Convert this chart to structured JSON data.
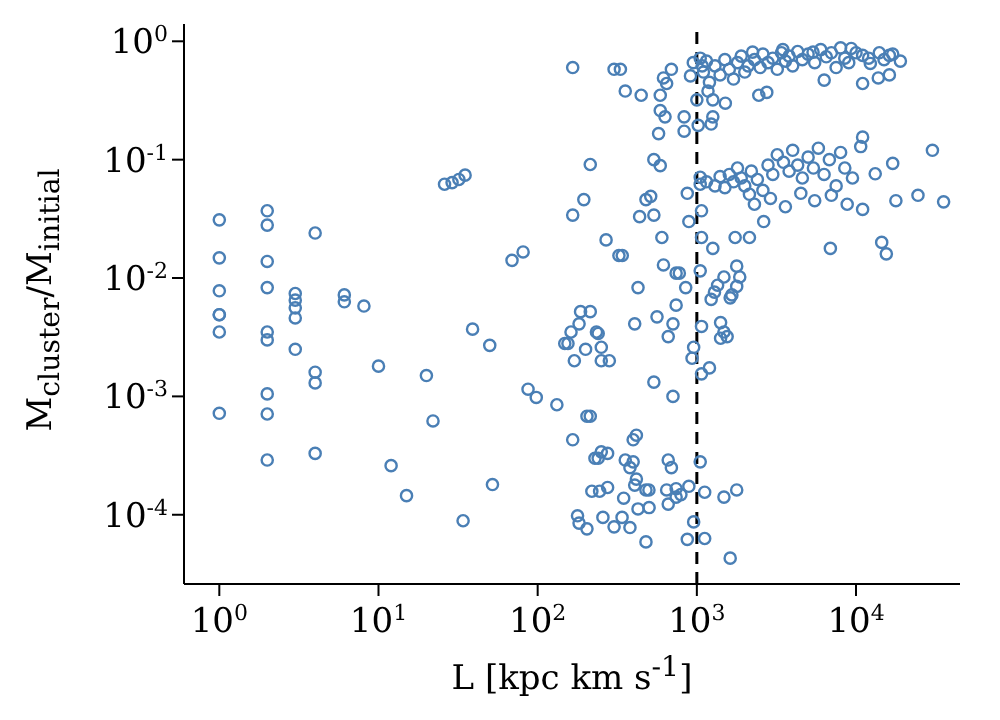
{
  "chart_data": {
    "type": "scatter",
    "xlabel": "L [kpc km s$^{-1}$]",
    "ylabel": "M$_{cluster}$/M$_{initial}$",
    "log": "xy",
    "marker": "circle",
    "color": "#4a7fb5",
    "xlim": [
      0.6,
      45000
    ],
    "ylim": [
      2.6e-05,
      1.4
    ],
    "xticks": [
      {
        "value": 1,
        "label": "10$^{0}$"
      },
      {
        "value": 10,
        "label": "10$^{1}$"
      },
      {
        "value": 100,
        "label": "10$^{2}$"
      },
      {
        "value": 1000,
        "label": "10$^{3}$"
      },
      {
        "value": 10000,
        "label": "10$^{4}$"
      }
    ],
    "yticks": [
      {
        "value": 0.0001,
        "label": "10$^{-4}$"
      },
      {
        "value": 0.001,
        "label": "10$^{-3}$"
      },
      {
        "value": 0.01,
        "label": "10$^{-2}$"
      },
      {
        "value": 0.1,
        "label": "10$^{-1}$"
      },
      {
        "value": 1,
        "label": "10$^{0}$"
      }
    ],
    "ref_lines": [
      {
        "axis": "x",
        "value": 1000,
        "color": "#000000",
        "line_style": "dashed"
      }
    ],
    "x": [
      1,
      1,
      1,
      1,
      1,
      1,
      1,
      2,
      2,
      2,
      2,
      2,
      2,
      2,
      2,
      2,
      3,
      3,
      3,
      3,
      3,
      4,
      4,
      4,
      4,
      6.1,
      6.1,
      8.1,
      10,
      12,
      15,
      20,
      22,
      26,
      29,
      32,
      35,
      34,
      39,
      50,
      52,
      69,
      81,
      87,
      98,
      132,
      148,
      166,
      302,
      331,
      355,
      447,
      617,
      692,
      646,
      589,
      589,
      631,
      575,
      832,
      832,
      912,
      1000,
      1020,
      1175,
      1260,
      1260,
      1230,
      1510,
      2450,
      2750,
      6310,
      11000,
      13800,
      16200,
      2240,
      3470,
      5370,
      9330,
      16200,
      19000,
      12300,
      1100,
      1150,
      1200,
      1300,
      1400,
      1500,
      1600,
      1700,
      1800,
      1900,
      2000,
      2100,
      2300,
      2500,
      2600,
      2800,
      3000,
      3200,
      3400,
      3600,
      3800,
      4000,
      4300,
      4600,
      5000,
      5500,
      6000,
      6500,
      7000,
      7500,
      8000,
      8500,
      9000,
      10000,
      11000,
      12000,
      14000,
      15000,
      17000,
      1050,
      1080,
      950,
      214,
      195,
      166,
      269,
      324,
      340,
      427,
      186,
      214,
      537,
      589,
      479,
      513,
      437,
      537,
      603,
      617,
      741,
      776,
      851,
      741,
      871,
      891,
      1050,
      1050,
      1070,
      1070,
      1050,
      1260,
      1290,
      1230,
      1480,
      1780,
      1860,
      1740,
      2140,
      1660,
      30200,
      35500,
      24500,
      17800,
      17000,
      14500,
      15500,
      6900,
      11000,
      10700,
      13200,
      11000,
      2630,
      2140,
      1150,
      1300,
      1400,
      1500,
      1600,
      1700,
      1800,
      1900,
      2000,
      2200,
      2400,
      2600,
      2800,
      3000,
      3200,
      3500,
      3800,
      4000,
      4300,
      4600,
      5000,
      5400,
      5800,
      6300,
      6800,
      7500,
      8000,
      8500,
      9500,
      2300,
      2900,
      3600,
      4500,
      5500,
      7000,
      8800,
      182,
      162,
      155,
      170,
      200,
      234,
      240,
      251,
      251,
      282,
      407,
      562,
      708,
      661,
      955,
      933,
      1070,
      1070,
      1200,
      1350,
      1620,
      1780,
      1410,
      1480,
      1410,
      1550,
      537,
      708,
      204,
      214,
      166,
      398,
      417,
      229,
      251,
      275,
      240,
      355,
      398,
      380,
      661,
      692,
      1050,
      417,
      407,
      479,
      500,
      219,
      245,
      275,
      347,
      646,
      741,
      741,
      794,
      891,
      661,
      1120,
      1480,
      1780,
      178,
      182,
      204,
      257,
      302,
      339,
      380,
      427,
      501,
      479,
      955,
      871,
      1120,
      1620
    ],
    "values": [
      0.031,
      0.0148,
      0.0078,
      0.0049,
      0.0049,
      0.0035,
      0.00072,
      0.037,
      0.028,
      0.0138,
      0.0083,
      0.0035,
      0.003,
      0.00105,
      0.00071,
      0.00029,
      0.0074,
      0.0065,
      0.0056,
      0.0046,
      0.0025,
      0.024,
      0.0016,
      0.0013,
      0.00033,
      0.0072,
      0.0063,
      0.0058,
      0.0018,
      0.00026,
      0.000145,
      0.0015,
      0.00062,
      0.062,
      0.064,
      0.068,
      0.074,
      8.9e-05,
      0.0037,
      0.0027,
      0.00018,
      0.0141,
      0.0166,
      0.00115,
      0.00098,
      0.00085,
      0.0028,
      0.6,
      0.58,
      0.58,
      0.38,
      0.35,
      0.49,
      0.58,
      0.44,
      0.35,
      0.26,
      0.23,
      0.166,
      0.23,
      0.174,
      0.51,
      0.32,
      0.195,
      0.38,
      0.32,
      0.23,
      0.2,
      0.3,
      0.35,
      0.37,
      0.47,
      0.44,
      0.49,
      0.52,
      0.81,
      0.85,
      0.81,
      0.87,
      0.76,
      0.68,
      0.65,
      0.55,
      0.68,
      0.45,
      0.62,
      0.52,
      0.7,
      0.58,
      0.48,
      0.66,
      0.75,
      0.55,
      0.62,
      0.7,
      0.6,
      0.78,
      0.66,
      0.72,
      0.58,
      0.8,
      0.68,
      0.75,
      0.62,
      0.82,
      0.7,
      0.78,
      0.66,
      0.85,
      0.74,
      0.8,
      0.6,
      0.88,
      0.72,
      0.66,
      0.8,
      0.76,
      0.72,
      0.8,
      0.7,
      0.78,
      0.72,
      0.62,
      0.66,
      0.091,
      0.046,
      0.034,
      0.021,
      0.0155,
      0.0155,
      0.0083,
      0.0052,
      0.0052,
      0.1,
      0.089,
      0.046,
      0.049,
      0.033,
      0.034,
      0.022,
      0.0129,
      0.011,
      0.011,
      0.0083,
      0.0059,
      0.052,
      0.03,
      0.071,
      0.062,
      0.037,
      0.022,
      0.0115,
      0.0178,
      0.0076,
      0.0066,
      0.0102,
      0.0126,
      0.0102,
      0.022,
      0.022,
      0.0072,
      0.12,
      0.044,
      0.05,
      0.045,
      0.093,
      0.02,
      0.016,
      0.0178,
      0.155,
      0.129,
      0.076,
      0.038,
      0.03,
      0.051,
      0.065,
      0.06,
      0.072,
      0.058,
      0.075,
      0.065,
      0.085,
      0.07,
      0.06,
      0.08,
      0.068,
      0.055,
      0.09,
      0.075,
      0.11,
      0.095,
      0.08,
      0.12,
      0.09,
      0.07,
      0.105,
      0.085,
      0.125,
      0.075,
      0.1,
      0.06,
      0.115,
      0.085,
      0.07,
      0.042,
      0.047,
      0.04,
      0.052,
      0.045,
      0.05,
      0.042,
      0.0041,
      0.0035,
      0.0028,
      0.002,
      0.0025,
      0.0035,
      0.0034,
      0.0026,
      0.002,
      0.002,
      0.0041,
      0.0047,
      0.0041,
      0.0032,
      0.0026,
      0.0021,
      0.0039,
      0.00155,
      0.00174,
      0.0087,
      0.0068,
      0.0085,
      0.0042,
      0.0035,
      0.0031,
      0.0032,
      0.00132,
      0.001,
      0.00068,
      0.00068,
      0.00043,
      0.00043,
      0.00047,
      0.0003,
      0.00034,
      0.00033,
      0.0003,
      0.00029,
      0.00028,
      0.00025,
      0.00029,
      0.00025,
      0.00028,
      0.0002,
      0.000178,
      0.000162,
      0.000162,
      0.000158,
      0.000158,
      0.00017,
      0.000138,
      0.000162,
      0.000166,
      0.000141,
      0.000148,
      0.000174,
      0.000123,
      0.000155,
      0.000141,
      0.000162,
      9.8e-05,
      8.5e-05,
      7.6e-05,
      9.5e-05,
      7.9e-05,
      9.5e-05,
      7.8e-05,
      0.000112,
      0.000115,
      5.9e-05,
      8.7e-05,
      6.2e-05,
      6.3e-05,
      4.3e-05
    ]
  }
}
